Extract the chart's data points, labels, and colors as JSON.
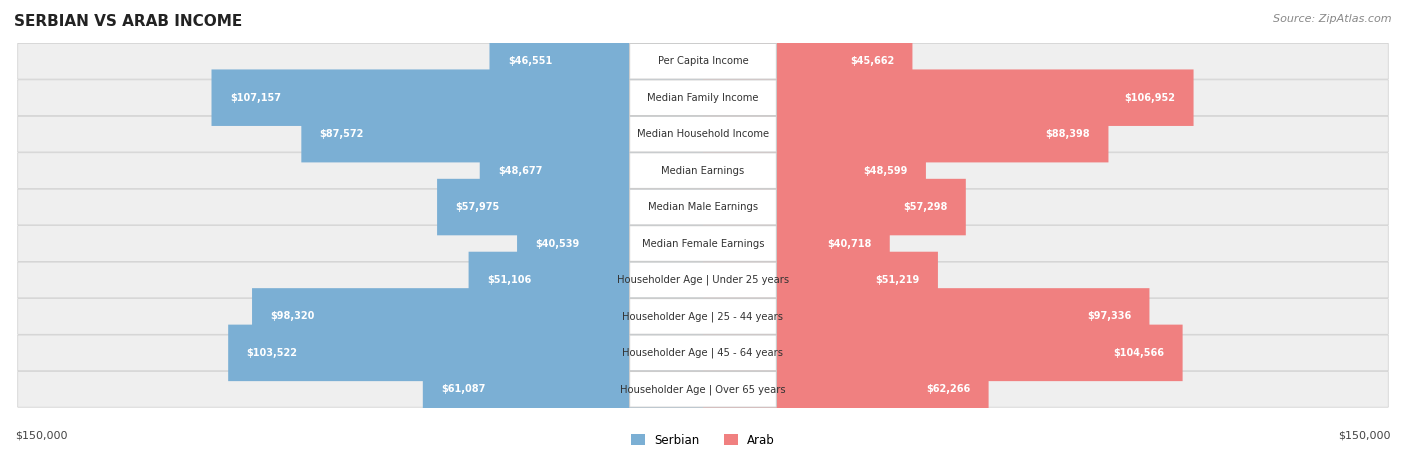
{
  "title": "SERBIAN VS ARAB INCOME",
  "source": "Source: ZipAtlas.com",
  "categories": [
    "Per Capita Income",
    "Median Family Income",
    "Median Household Income",
    "Median Earnings",
    "Median Male Earnings",
    "Median Female Earnings",
    "Householder Age | Under 25 years",
    "Householder Age | 25 - 44 years",
    "Householder Age | 45 - 64 years",
    "Householder Age | Over 65 years"
  ],
  "serbian_values": [
    46551,
    107157,
    87572,
    48677,
    57975,
    40539,
    51106,
    98320,
    103522,
    61087
  ],
  "arab_values": [
    45662,
    106952,
    88398,
    48599,
    57298,
    40718,
    51219,
    97336,
    104566,
    62266
  ],
  "serbian_labels": [
    "$46,551",
    "$107,157",
    "$87,572",
    "$48,677",
    "$57,975",
    "$40,539",
    "$51,106",
    "$98,320",
    "$103,522",
    "$61,087"
  ],
  "arab_labels": [
    "$45,662",
    "$106,952",
    "$88,398",
    "$48,599",
    "$57,298",
    "$40,718",
    "$51,219",
    "$97,336",
    "$104,566",
    "$62,266"
  ],
  "serbian_color": "#7bafd4",
  "arab_color": "#f08080",
  "serbian_label_color_inside": "#ffffff",
  "arab_label_color_inside": "#ffffff",
  "bar_row_bg": "#f0f0f0",
  "max_value": 150000,
  "bar_height": 0.55,
  "row_bg_color": "#efefef",
  "center_box_color": "#ffffff",
  "figsize": [
    14.06,
    4.67
  ],
  "dpi": 100
}
